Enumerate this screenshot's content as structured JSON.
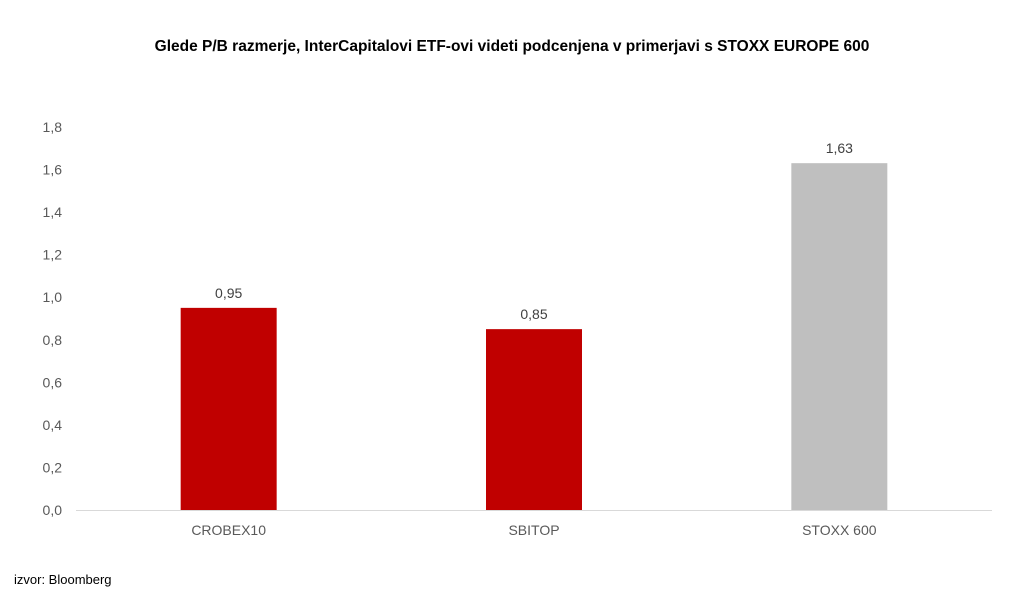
{
  "chart_data": {
    "type": "bar",
    "title": "Glede P/B razmerje, InterCapitalovi ETF-ovi videti podcenjena v primerjavi s STOXX EUROPE 600",
    "categories": [
      "CROBEX10",
      "SBITOP",
      "STOXX 600"
    ],
    "values": [
      0.95,
      0.85,
      1.63
    ],
    "data_labels": [
      "0,95",
      "0,85",
      "1,63"
    ],
    "bar_colors": [
      "#C00000",
      "#C00000",
      "#BFBFBF"
    ],
    "ylim": [
      0,
      1.8
    ],
    "yticks": [
      0,
      0.2,
      0.4,
      0.6,
      0.8,
      1.0,
      1.2,
      1.4,
      1.6,
      1.8
    ],
    "ytick_labels": [
      "0,0",
      "0,2",
      "0,4",
      "0,6",
      "0,8",
      "1,0",
      "1,2",
      "1,4",
      "1,6",
      "1,8"
    ],
    "xlabel": "",
    "ylabel": "",
    "grid": false,
    "legend": "none"
  },
  "source": "izvor: Bloomberg"
}
